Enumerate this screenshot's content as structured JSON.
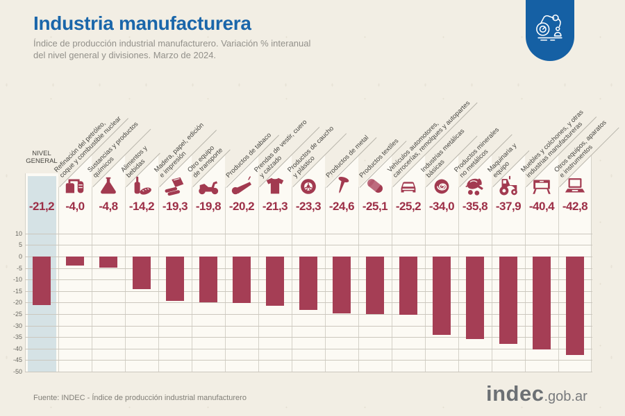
{
  "header": {
    "title": "Industria manufacturera",
    "subtitle": "Índice de producción industrial manufacturero. Variación % interanual\ndel nivel general y divisiones. Marzo de 2024.",
    "badge_icon": "robot-arm-icon",
    "title_color": "#1a66aa",
    "badge_color": "#1560a4"
  },
  "chart_data": {
    "type": "bar",
    "title": "Índice de producción industrial manufacturero. Variación % interanual del nivel general y divisiones. Marzo de 2024.",
    "unit": "%",
    "xlabel": "",
    "ylabel": "Variación % interanual",
    "ylim": [
      -50,
      10
    ],
    "yticks": [
      10,
      5,
      0,
      -5,
      -10,
      -15,
      -20,
      -25,
      -30,
      -35,
      -40,
      -45,
      -50
    ],
    "grid": true,
    "legend": "none",
    "bar_color": "#a53e55",
    "value_color": "#9c2e46",
    "highlight_band_color": "#d5e2e5",
    "categories": [
      "NIVEL GENERAL",
      "Refinación del petróleo, coque y combustible nuclear",
      "Sustancias y productos químicos",
      "Alimentos y bebidas",
      "Madera, papel, edición e impresión",
      "Otro equipo de transporte",
      "Productos de tabaco",
      "Prendas de vestir, cuero y calzado",
      "Productos de caucho y plástico",
      "Productos de metal",
      "Productos textiles",
      "Vehículos automotores, carrocerías, remolques y autopartes",
      "Industrias metálicas básicas",
      "Productos minerales no metálicos",
      "Maquinaria y equipo",
      "Muebles y colchones, y otras industrias manufactureras",
      "Otros equipos, aparatos e instrumentos"
    ],
    "values": [
      -21.2,
      -4.0,
      -4.8,
      -14.2,
      -19.3,
      -19.8,
      -20.2,
      -21.3,
      -23.3,
      -24.6,
      -25.1,
      -25.2,
      -34.0,
      -35.8,
      -37.9,
      -40.4,
      -42.8
    ],
    "value_labels": [
      "-21,2",
      "-4,0",
      "-4,8",
      "-14,2",
      "-19,3",
      "-19,8",
      "-20,2",
      "-21,3",
      "-23,3",
      "-24,6",
      "-25,1",
      "-25,2",
      "-34,0",
      "-35,8",
      "-37,9",
      "-40,4",
      "-42,8"
    ],
    "columns": [
      {
        "label": "NIVEL\nGENERAL",
        "value": -21.2,
        "display": "-21,2",
        "icon": null,
        "highlight": true
      },
      {
        "label": "Refinación del petróleo,\ncoque y combustible nuclear",
        "value": -4.0,
        "display": "-4,0",
        "icon": "refinery-icon",
        "highlight": false
      },
      {
        "label": "Sustancias y productos\nquímicos",
        "value": -4.8,
        "display": "-4,8",
        "icon": "flask-icon",
        "highlight": false
      },
      {
        "label": "Alimentos y\nbebidas",
        "value": -14.2,
        "display": "-14,2",
        "icon": "food-icon",
        "highlight": false
      },
      {
        "label": "Madera, papel, edición\ne impresión",
        "value": -19.3,
        "display": "-19,3",
        "icon": "wood-paper-icon",
        "highlight": false
      },
      {
        "label": "Otro equipo\nde transporte",
        "value": -19.8,
        "display": "-19,8",
        "icon": "motorcycle-icon",
        "highlight": false
      },
      {
        "label": "Productos de tabaco",
        "value": -20.2,
        "display": "-20,2",
        "icon": "pipe-icon",
        "highlight": false
      },
      {
        "label": "Prendas de vestir, cuero\ny calzado",
        "value": -21.3,
        "display": "-21,3",
        "icon": "tshirt-icon",
        "highlight": false
      },
      {
        "label": "Productos de caucho\ny plástico",
        "value": -23.3,
        "display": "-23,3",
        "icon": "tire-icon",
        "highlight": false
      },
      {
        "label": "Productos de metal",
        "value": -24.6,
        "display": "-24,6",
        "icon": "nail-icon",
        "highlight": false
      },
      {
        "label": "Productos textiles",
        "value": -25.1,
        "display": "-25,1",
        "icon": "spool-icon",
        "highlight": false
      },
      {
        "label": "Vehículos automotores,\ncarrocerías, remolques y autopartes",
        "value": -25.2,
        "display": "-25,2",
        "icon": "car-icon",
        "highlight": false
      },
      {
        "label": "Industrias metálicas\nbásicas",
        "value": -34.0,
        "display": "-34,0",
        "icon": "coil-icon",
        "highlight": false
      },
      {
        "label": "Productos minerales\nno metálicos",
        "value": -35.8,
        "display": "-35,8",
        "icon": "mixer-icon",
        "highlight": false
      },
      {
        "label": "Maquinaria y\nequipo",
        "value": -37.9,
        "display": "-37,9",
        "icon": "tractor-icon",
        "highlight": false
      },
      {
        "label": "Muebles y colchones, y otras\nindustrias manufactureras",
        "value": -40.4,
        "display": "-40,4",
        "icon": "furniture-icon",
        "highlight": false
      },
      {
        "label": "Otros equipos, aparatos\ne instrumentos",
        "value": -42.8,
        "display": "-42,8",
        "icon": "laptop-icon",
        "highlight": false
      }
    ]
  },
  "footer": {
    "source": "Fuente: INDEC - Índice de producción industrial manufacturero",
    "logo_main": "indec",
    "logo_suffix": ".gob.ar"
  }
}
